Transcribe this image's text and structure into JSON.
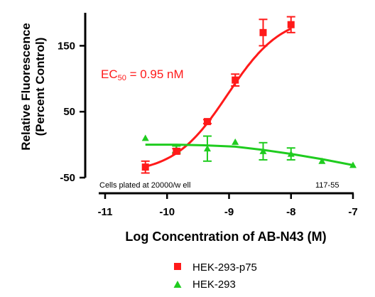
{
  "chart_data": {
    "type": "scatter",
    "xlabel": "Log Concentration of AB-N43 (M)",
    "ylabel_line1": "Relative Fluorescence",
    "ylabel_line2": "(Percent Control)",
    "xlim": [
      -11,
      -7
    ],
    "ylim": [
      -50,
      200
    ],
    "x_ticks": [
      -11,
      -10,
      -9,
      -8,
      -7
    ],
    "x_tick_labels": [
      "-11",
      "-10",
      "-9",
      "-8",
      "-7"
    ],
    "y_ticks": [
      -50,
      50,
      150
    ],
    "y_tick_labels": [
      "-50",
      "50",
      "150"
    ],
    "annotations": {
      "ec50_prefix": "EC",
      "ec50_sub": "50",
      "ec50_suffix": " = 0.95 nM",
      "plating_note": "Cells plated at 20000/w ell",
      "code": "117-55"
    },
    "series": [
      {
        "name": "HEK-293-p75",
        "color": "#ff1a1a",
        "marker": "square",
        "points": [
          {
            "x": -10.35,
            "y": -34,
            "err": 9
          },
          {
            "x": -9.85,
            "y": -10,
            "err": 4
          },
          {
            "x": -9.35,
            "y": 35,
            "err": 3
          },
          {
            "x": -8.9,
            "y": 98,
            "err": 9
          },
          {
            "x": -8.45,
            "y": 170,
            "err": 20
          },
          {
            "x": -8.0,
            "y": 182,
            "err": 12
          }
        ],
        "fit": {
          "bottom": -44,
          "top": 197,
          "logEC50": -9.02,
          "hill": 1.0
        }
      },
      {
        "name": "HEK-293",
        "color": "#1fcc1f",
        "marker": "triangle",
        "points": [
          {
            "x": -10.35,
            "y": 10,
            "err": 0
          },
          {
            "x": -9.85,
            "y": -7,
            "err": 5
          },
          {
            "x": -9.35,
            "y": -6,
            "err": 19
          },
          {
            "x": -8.9,
            "y": 4,
            "err": 0
          },
          {
            "x": -8.45,
            "y": -10,
            "err": 13
          },
          {
            "x": -8.0,
            "y": -14,
            "err": 9
          },
          {
            "x": -7.5,
            "y": -25,
            "err": 0
          },
          {
            "x": -7.0,
            "y": -31,
            "err": 0
          }
        ],
        "fit": [
          {
            "x": -10.35,
            "y": 0
          },
          {
            "x": -9.85,
            "y": 0
          },
          {
            "x": -9.4,
            "y": -1
          },
          {
            "x": -8.9,
            "y": -3
          },
          {
            "x": -8.45,
            "y": -8
          },
          {
            "x": -8.0,
            "y": -14
          },
          {
            "x": -7.5,
            "y": -22
          },
          {
            "x": -7.0,
            "y": -31
          }
        ]
      }
    ],
    "legend_position": "bottom"
  }
}
